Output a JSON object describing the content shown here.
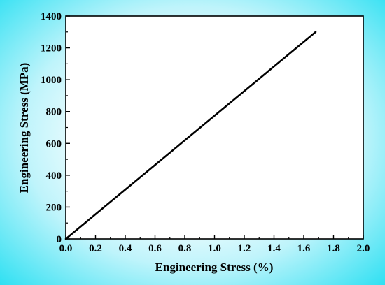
{
  "chart_data": {
    "type": "line",
    "title": "",
    "xlabel": "Engineering Stress (%)",
    "ylabel": "Engineering Stress (MPa)",
    "xlim": [
      0.0,
      2.0
    ],
    "ylim": [
      0,
      1400
    ],
    "xticks": [
      "0.0",
      "0.2",
      "0.4",
      "0.6",
      "0.8",
      "1.0",
      "1.2",
      "1.4",
      "1.6",
      "1.8",
      "2.0"
    ],
    "yticks": [
      "0",
      "200",
      "400",
      "600",
      "800",
      "1000",
      "1200",
      "1400"
    ],
    "grid": false,
    "legend": "none",
    "series": [
      {
        "x": [
          0.0,
          1.68
        ],
        "y": [
          0,
          1300
        ],
        "color": "#000000"
      }
    ]
  },
  "colors": {
    "background_edge": "#2fe0f2",
    "background_center": "#ffffff",
    "line": "#000000"
  }
}
